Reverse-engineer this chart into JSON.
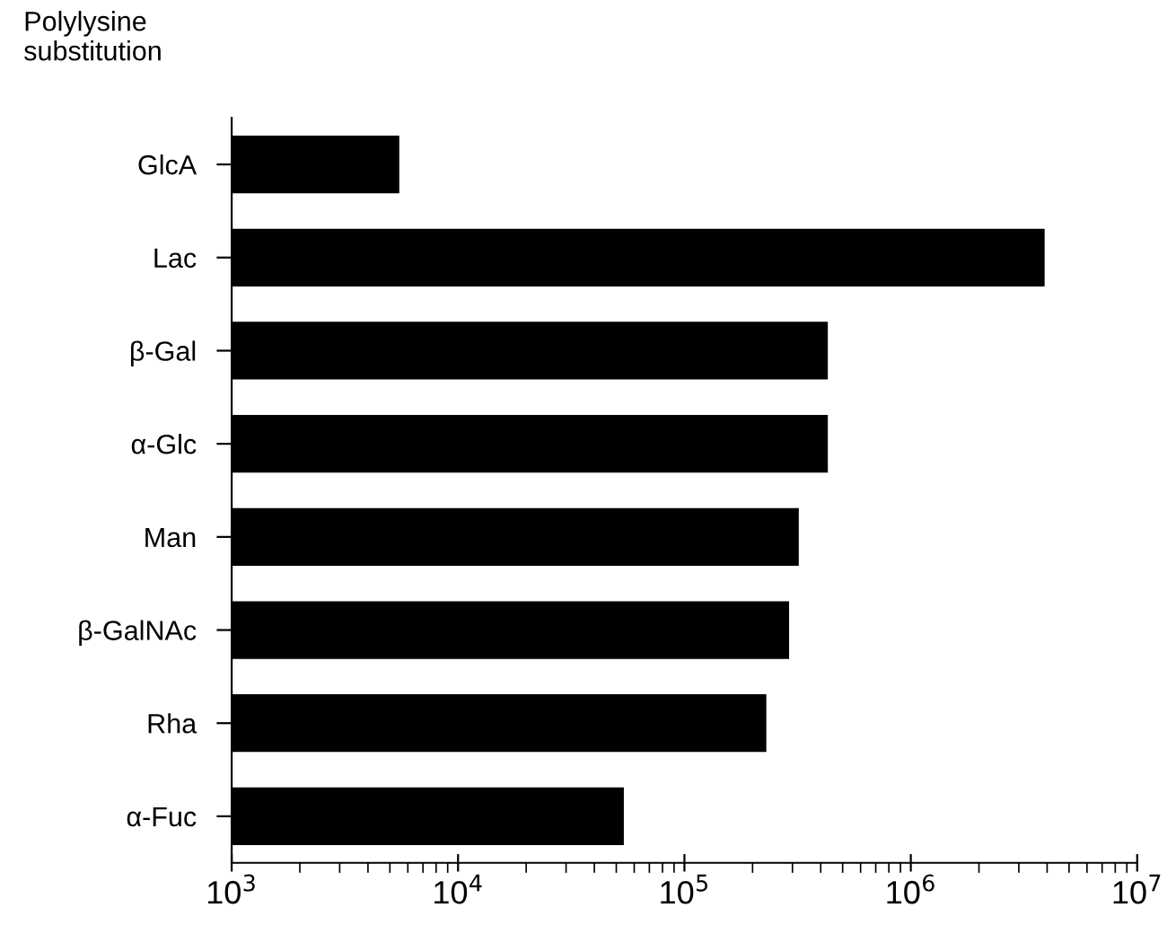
{
  "chart_data": {
    "type": "bar",
    "orientation": "horizontal",
    "log": "x",
    "ylabel": "Polylysine substitution",
    "categories": [
      "GlcA",
      "Lac",
      "β-Gal",
      "α-Glc",
      "Man",
      "β-GalNAc",
      "Rha",
      "α-Fuc"
    ],
    "values": [
      5500,
      3900000,
      430000,
      430000,
      320000,
      290000,
      230000,
      54000
    ],
    "color": "#000000",
    "xlim": [
      1000,
      10000000
    ],
    "xticks": [
      {
        "value": 1000,
        "label": "10$^{3}$"
      },
      {
        "value": 10000,
        "label": "10$^{4}$"
      },
      {
        "value": 100000,
        "label": "10$^{5}$"
      },
      {
        "value": 1000000,
        "label": "10$^{6}$"
      },
      {
        "value": 10000000,
        "label": "10$^{7}$"
      }
    ],
    "grid": false
  }
}
